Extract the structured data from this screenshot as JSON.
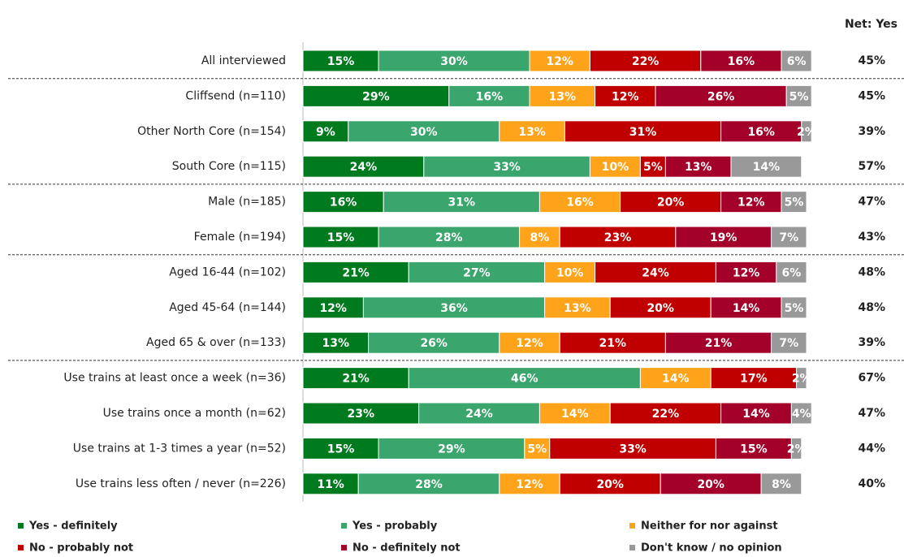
{
  "chart_data": {
    "type": "stacked-bar-horizontal",
    "categories": [
      "All interviewed",
      "Cliffsend (n=110)",
      "Other North Core (n=154)",
      "South Core (n=115)",
      "Male (n=185)",
      "Female (n=194)",
      "Aged 16-44 (n=102)",
      "Aged 45-64 (n=144)",
      "Aged 65 & over (n=133)",
      "Use trains at least once a week (n=36)",
      "Use trains once a month (n=62)",
      "Use trains at 1-3 times a year (n=52)",
      "Use trains less often / never (n=226)"
    ],
    "xlim": [
      0,
      100
    ],
    "series": [
      {
        "name": "Yes - definitely",
        "color": "#007a1e",
        "values": [
          15,
          29,
          9,
          24,
          16,
          15,
          21,
          12,
          13,
          21,
          23,
          15,
          11
        ],
        "value_labels": [
          "15%",
          "29%",
          "9%",
          "24%",
          "16%",
          "15%",
          "21%",
          "12%",
          "13%",
          "21%",
          "23%",
          "15%",
          "11%"
        ]
      },
      {
        "name": "Yes - probably",
        "color": "#3aa56c",
        "values": [
          30,
          16,
          30,
          33,
          31,
          28,
          27,
          36,
          26,
          46,
          24,
          29,
          28
        ],
        "value_labels": [
          "30%",
          "16%",
          "30%",
          "33%",
          "31%",
          "28%",
          "27%",
          "36%",
          "26%",
          "46%",
          "24%",
          "29%",
          "28%"
        ]
      },
      {
        "name": "Neither for nor against",
        "color": "#ffa31a",
        "values": [
          12,
          13,
          13,
          10,
          16,
          8,
          10,
          13,
          12,
          14,
          14,
          5,
          12
        ],
        "value_labels": [
          "12%",
          "13%",
          "13%",
          "10%",
          "16%",
          "8%",
          "10%",
          "13%",
          "12%",
          "14%",
          "14%",
          "5%",
          "12%"
        ]
      },
      {
        "name": "No - probably not",
        "color": "#c00000",
        "values": [
          22,
          12,
          31,
          5,
          20,
          23,
          24,
          20,
          21,
          17,
          22,
          33,
          20
        ],
        "value_labels": [
          "22%",
          "12%",
          "31%",
          "5%",
          "20%",
          "23%",
          "24%",
          "20%",
          "21%",
          "17%",
          "22%",
          "33%",
          "20%"
        ]
      },
      {
        "name": "No - definitely not",
        "color": "#a3002a",
        "values": [
          16,
          26,
          16,
          13,
          12,
          19,
          12,
          14,
          21,
          null,
          14,
          15,
          20
        ],
        "value_labels": [
          "16%",
          "26%",
          "16%",
          "13%",
          "12%",
          "19%",
          "12%",
          "14%",
          "21%",
          null,
          "14%",
          "15%",
          "20%"
        ]
      },
      {
        "name": "Don't know / no opinion",
        "color": "#999999",
        "values": [
          6,
          5,
          2,
          14,
          5,
          7,
          6,
          5,
          7,
          2,
          4,
          2,
          8
        ],
        "value_labels": [
          "6%",
          "5%",
          "2%",
          "14%",
          "5%",
          "7%",
          "6%",
          "5%",
          "7%",
          "2%",
          "4%",
          "2%",
          "8%"
        ]
      }
    ],
    "net": {
      "title": "Net: Yes",
      "values": [
        45,
        45,
        39,
        57,
        47,
        43,
        48,
        48,
        39,
        67,
        47,
        44,
        40
      ],
      "value_labels": [
        "45%",
        "45%",
        "39%",
        "57%",
        "47%",
        "43%",
        "48%",
        "48%",
        "39%",
        "67%",
        "47%",
        "44%",
        "40%"
      ]
    }
  }
}
